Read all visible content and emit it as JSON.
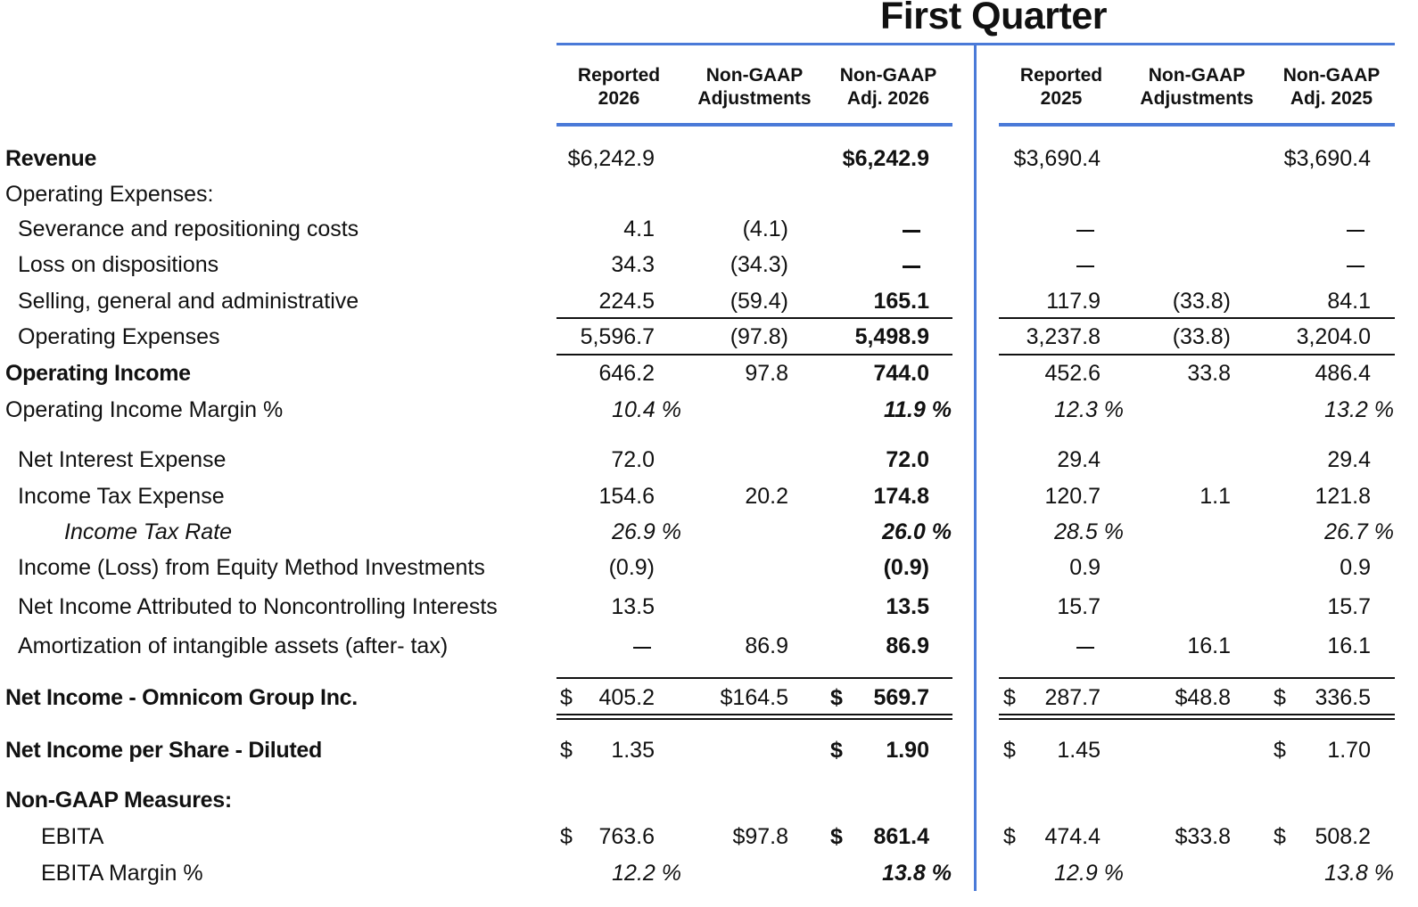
{
  "title": "First Quarter",
  "columns": [
    {
      "line1": "Reported",
      "line2": "2026"
    },
    {
      "line1": "Non-GAAP",
      "line2": "Adjustments"
    },
    {
      "line1": "Non-GAAP",
      "line2": "Adj. 2026"
    },
    {
      "line1": "Reported",
      "line2": "2025"
    },
    {
      "line1": "Non-GAAP",
      "line2": "Adjustments"
    },
    {
      "line1": "Non-GAAP",
      "line2": "Adj. 2025"
    }
  ],
  "rows": {
    "revenue": {
      "label": "Revenue",
      "v": [
        "$6,242.9",
        "",
        "$6,242.9",
        "$3,690.4",
        "",
        "$3,690.4"
      ]
    },
    "opex_header": {
      "label": "Operating Expenses:"
    },
    "severance": {
      "label": "Severance and repositioning costs",
      "v": [
        "4.1",
        "(4.1)",
        "—",
        "—",
        "",
        "—"
      ]
    },
    "loss_disp": {
      "label": "Loss on dispositions",
      "v": [
        "34.3",
        "(34.3)",
        "—",
        "—",
        "",
        "—"
      ]
    },
    "sga": {
      "label": "Selling, general and administrative",
      "v": [
        "224.5",
        "(59.4)",
        "165.1",
        "117.9",
        "(33.8)",
        "84.1"
      ]
    },
    "opex": {
      "label": "Operating Expenses",
      "v": [
        "5,596.7",
        "(97.8)",
        "5,498.9",
        "3,237.8",
        "(33.8)",
        "3,204.0"
      ]
    },
    "op_income": {
      "label": "Operating Income",
      "v": [
        "646.2",
        "97.8",
        "744.0",
        "452.6",
        "33.8",
        "486.4"
      ]
    },
    "op_margin": {
      "label": "Operating Income Margin %",
      "v": [
        "10.4 %",
        "",
        "11.9 %",
        "12.3 %",
        "",
        "13.2 %"
      ]
    },
    "net_interest": {
      "label": "Net Interest Expense",
      "v": [
        "72.0",
        "",
        "72.0",
        "29.4",
        "",
        "29.4"
      ]
    },
    "tax": {
      "label": "Income Tax Expense",
      "v": [
        "154.6",
        "20.2",
        "174.8",
        "120.7",
        "1.1",
        "121.8"
      ]
    },
    "tax_rate": {
      "label": "Income Tax Rate",
      "v": [
        "26.9 %",
        "",
        "26.0 %",
        "28.5 %",
        "",
        "26.7 %"
      ]
    },
    "equity": {
      "label": "Income (Loss) from Equity Method Investments",
      "v": [
        "(0.9)",
        "",
        "(0.9)",
        "0.9",
        "",
        "0.9"
      ]
    },
    "nci": {
      "label": "Net Income Attributed to Noncontrolling Interests",
      "v": [
        "13.5",
        "",
        "13.5",
        "15.7",
        "",
        "15.7"
      ]
    },
    "amort": {
      "label": "Amortization of  intangible assets (after- tax)",
      "v": [
        "—",
        "86.9",
        "86.9",
        "—",
        "16.1",
        "16.1"
      ]
    },
    "net_income": {
      "label": "Net Income - Omnicom Group Inc.",
      "d": [
        "$",
        "",
        "$",
        "$",
        "",
        "$"
      ],
      "v": [
        "405.2",
        "$164.5",
        "569.7",
        "287.7",
        "$48.8",
        "336.5"
      ]
    },
    "eps": {
      "label": "Net Income per Share - Diluted",
      "d": [
        "$",
        "",
        "$",
        "$",
        "",
        "$"
      ],
      "v": [
        "1.35",
        "",
        "1.90",
        "1.45",
        "",
        "1.70"
      ]
    },
    "nongaap_header": {
      "label": "Non-GAAP Measures:"
    },
    "ebita": {
      "label": "EBITA",
      "d": [
        "$",
        "",
        "$",
        "$",
        "",
        "$"
      ],
      "v": [
        "763.6",
        "$97.8",
        "861.4",
        "474.4",
        "$33.8",
        "508.2"
      ]
    },
    "ebita_margin": {
      "label": "EBITA Margin %",
      "v": [
        "12.2 %",
        "",
        "13.8 %",
        "12.9 %",
        "",
        "13.8 %"
      ]
    }
  }
}
